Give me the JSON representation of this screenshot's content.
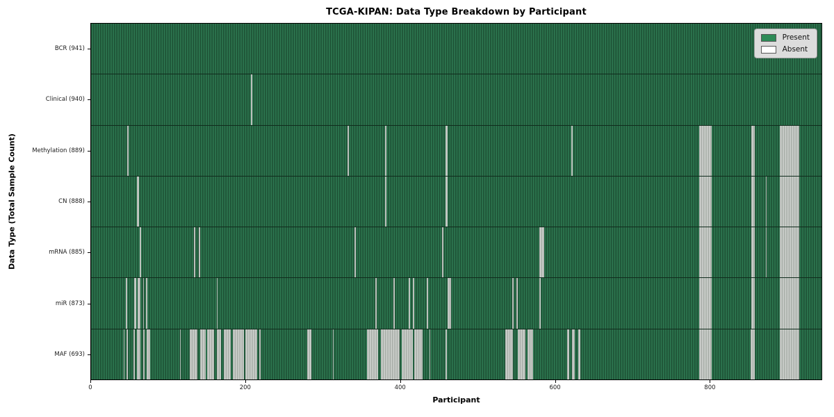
{
  "title": "TCGA-KIPAN: Data Type Breakdown by Participant",
  "axes": {
    "xlabel": "Participant",
    "ylabel": "Data Type (Total Sample Count)",
    "xticks": [
      0,
      200,
      400,
      600,
      800
    ],
    "xmax": 945
  },
  "legend": {
    "items": [
      {
        "label": "Present",
        "color": "#2e8b57"
      },
      {
        "label": "Absent",
        "color": "#ffffff"
      }
    ]
  },
  "colors": {
    "present": "#2e8b57",
    "present_stripe_dark": "#1d5034",
    "present_stripe_light": "#2d7750",
    "absent_fill": "#c9cdc9",
    "absent_edge": "#9aa09a",
    "plot_border": "#000000",
    "legend_bg": "#dcdcdc"
  },
  "chart_data": {
    "type": "heatmap",
    "title": "TCGA-KIPAN: Data Type Breakdown by Participant",
    "xlabel": "Participant",
    "ylabel": "Data Type (Total Sample Count)",
    "x_range": [
      0,
      945
    ],
    "xticks": [
      0,
      200,
      400,
      600,
      800
    ],
    "legend": [
      "Present",
      "Absent"
    ],
    "legend_position": "upper right",
    "cell_states": {
      "present": "green",
      "absent": "white"
    },
    "rows": [
      {
        "label": "BCR (941)",
        "name": "BCR",
        "present_count": 941,
        "absent_segments": []
      },
      {
        "label": "Clinical (940)",
        "name": "Clinical",
        "present_count": 940,
        "absent_segments": [
          [
            207,
            209
          ]
        ]
      },
      {
        "label": "Methylation (889)",
        "name": "Methylation",
        "present_count": 889,
        "absent_segments": [
          [
            47,
            49
          ],
          [
            332,
            334
          ],
          [
            380,
            382
          ],
          [
            459,
            461
          ],
          [
            621,
            623
          ],
          [
            787,
            803
          ],
          [
            854,
            859
          ],
          [
            891,
            916
          ]
        ]
      },
      {
        "label": "CN (888)",
        "name": "CN",
        "present_count": 888,
        "absent_segments": [
          [
            59,
            62
          ],
          [
            380,
            382
          ],
          [
            459,
            461
          ],
          [
            787,
            803
          ],
          [
            854,
            859
          ],
          [
            873,
            874
          ],
          [
            891,
            916
          ]
        ]
      },
      {
        "label": "mRNA (885)",
        "name": "mRNA",
        "present_count": 885,
        "absent_segments": [
          [
            63,
            65
          ],
          [
            133,
            135
          ],
          [
            139,
            141
          ],
          [
            341,
            343
          ],
          [
            454,
            456
          ],
          [
            580,
            586
          ],
          [
            787,
            803
          ],
          [
            854,
            859
          ],
          [
            873,
            874
          ],
          [
            891,
            916
          ]
        ]
      },
      {
        "label": "miR (873)",
        "name": "miR",
        "present_count": 873,
        "absent_segments": [
          [
            45,
            47
          ],
          [
            56,
            58
          ],
          [
            60,
            64
          ],
          [
            67,
            68
          ],
          [
            71,
            73
          ],
          [
            163,
            164
          ],
          [
            368,
            370
          ],
          [
            391,
            393
          ],
          [
            411,
            413
          ],
          [
            416,
            418
          ],
          [
            434,
            436
          ],
          [
            461,
            466
          ],
          [
            545,
            547
          ],
          [
            550,
            552
          ],
          [
            580,
            582
          ],
          [
            787,
            803
          ],
          [
            854,
            859
          ],
          [
            891,
            916
          ]
        ]
      },
      {
        "label": "MAF (693)",
        "name": "MAF",
        "present_count": 693,
        "absent_segments": [
          [
            42,
            43
          ],
          [
            46,
            48
          ],
          [
            55,
            57
          ],
          [
            59,
            64
          ],
          [
            67,
            69
          ],
          [
            72,
            76
          ],
          [
            115,
            116
          ],
          [
            128,
            138
          ],
          [
            141,
            148
          ],
          [
            150,
            159
          ],
          [
            163,
            168
          ],
          [
            172,
            181
          ],
          [
            183,
            198
          ],
          [
            200,
            215
          ],
          [
            218,
            219
          ],
          [
            280,
            285
          ],
          [
            313,
            314
          ],
          [
            357,
            371
          ],
          [
            375,
            399
          ],
          [
            402,
            416
          ],
          [
            418,
            429
          ],
          [
            438,
            439
          ],
          [
            459,
            460
          ],
          [
            536,
            546
          ],
          [
            552,
            562
          ],
          [
            565,
            572
          ],
          [
            616,
            619
          ],
          [
            622,
            626
          ],
          [
            630,
            633
          ],
          [
            787,
            803
          ],
          [
            853,
            859
          ],
          [
            891,
            916
          ]
        ]
      }
    ]
  }
}
